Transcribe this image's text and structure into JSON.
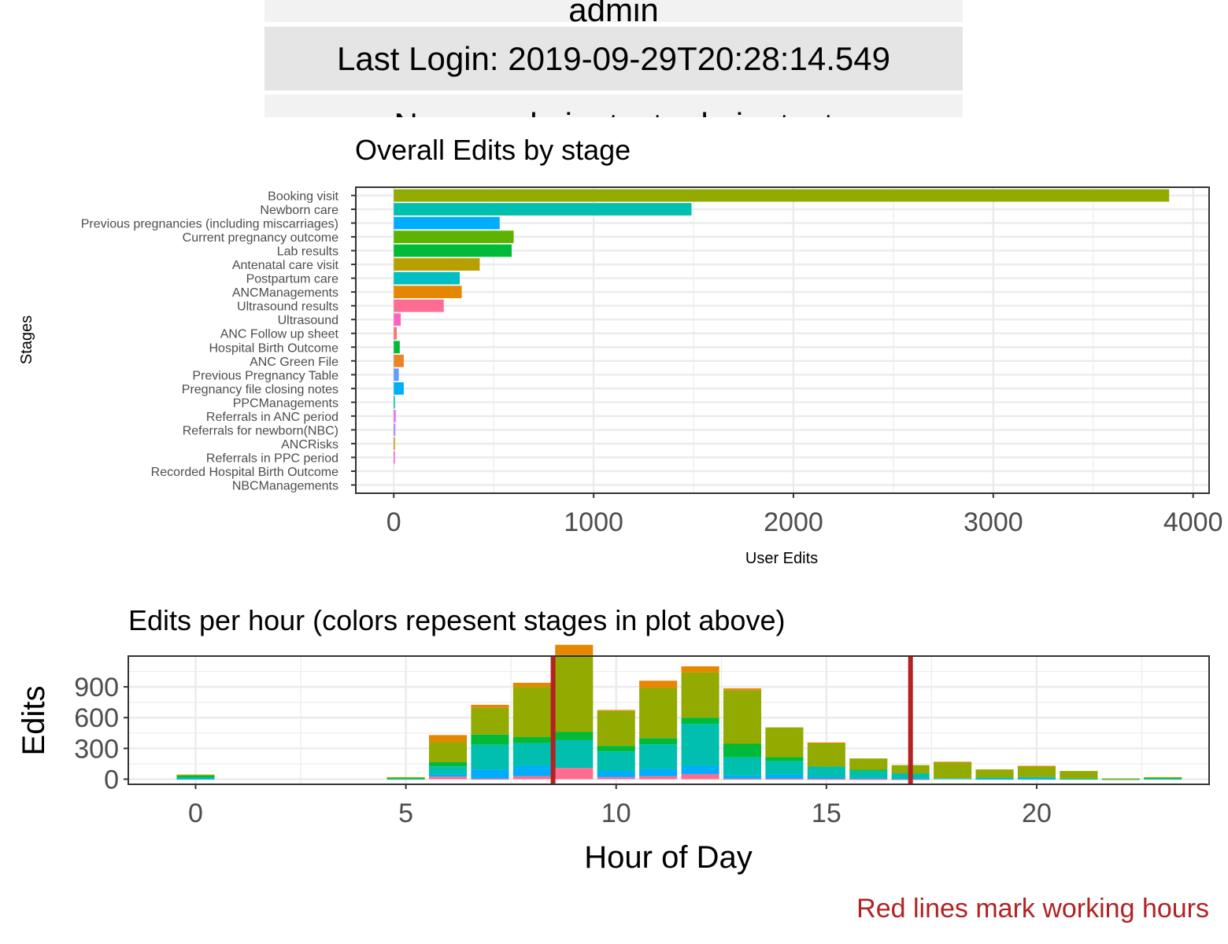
{
  "header": {
    "rows": [
      "admin",
      "Last Login: 2019-09-29T20:28:14.549",
      "Name: admin_test admin_test"
    ]
  },
  "colors": {
    "panel_border": "#333333",
    "grid_major": "#ebebeb",
    "working_hours_line": "#b22222",
    "stage_palette": [
      "#F8766D",
      "#E88526",
      "#D39200",
      "#B79F00",
      "#93AA00",
      "#5EB300",
      "#00BA38",
      "#00BF74",
      "#00C19F",
      "#00BFC4",
      "#00B9E3",
      "#00ADFA",
      "#619CFF",
      "#AE87FF",
      "#DB72FB",
      "#F564E3",
      "#FF61C3",
      "#FF6C91",
      "#E76BF3",
      "#00B0F6",
      "#7CAE00"
    ]
  },
  "chart_data": [
    {
      "type": "bar",
      "orientation": "horizontal",
      "title": "Overall Edits by stage",
      "xlabel": "User Edits",
      "ylabel": "Stages",
      "xlim": [
        -190,
        4080
      ],
      "xticks": [
        0,
        1000,
        2000,
        3000,
        4000
      ],
      "grid": true,
      "legend": "none",
      "categories": [
        "Booking visit",
        "Newborn care",
        "Previous pregnancies (including miscarriages)",
        "Current pregnancy outcome",
        "Lab results",
        "Antenatal care visit",
        "Postpartum care",
        "ANCManagements",
        "Ultrasound results",
        "Ultrasound",
        "ANC Follow up sheet",
        "Hospital Birth Outcome",
        "ANC Green File",
        "Previous Pregnancy Table",
        "Pregnancy file closing notes",
        "PPCManagements",
        "Referrals in ANC period",
        "Referrals for newborn(NBC)",
        "ANCRisks",
        "Referrals in PPC period",
        "Recorded Hospital Birth Outcome",
        "NBCManagements"
      ],
      "values": [
        3880,
        1490,
        530,
        600,
        590,
        430,
        330,
        340,
        250,
        35,
        15,
        30,
        50,
        25,
        50,
        5,
        10,
        8,
        4,
        6,
        0,
        0
      ],
      "bar_colors": [
        "#93AA00",
        "#00BFAE",
        "#00ADFA",
        "#5EB300",
        "#00BA38",
        "#B79F00",
        "#00BFC4",
        "#E58700",
        "#FF6C91",
        "#FF61C3",
        "#F8766D",
        "#00BA38",
        "#E88526",
        "#619CFF",
        "#00B0F6",
        "#00C19F",
        "#DB72FB",
        "#AE87FF",
        "#D39200",
        "#F564E3",
        "#00BF74",
        "#7CAE00"
      ]
    },
    {
      "type": "bar",
      "stacked": true,
      "title": "Edits per hour (colors repesent stages in plot above)",
      "xlabel": "Hour of Day",
      "ylabel": "Edits",
      "xlim": [
        -1.6,
        24.1
      ],
      "ylim": [
        -50,
        1200
      ],
      "xticks": [
        0,
        5,
        10,
        15,
        20
      ],
      "yticks": [
        0,
        300,
        600,
        900
      ],
      "grid": true,
      "legend": "none",
      "vlines": [
        8.5,
        17.0
      ],
      "caption": "Red lines mark working hours",
      "x": [
        0,
        1,
        2,
        3,
        4,
        5,
        6,
        7,
        8,
        9,
        10,
        11,
        12,
        13,
        14,
        15,
        16,
        17,
        18,
        19,
        20,
        21,
        22,
        23
      ],
      "series": [
        {
          "color": "#FF6C91",
          "values": [
            0,
            0,
            0,
            0,
            0,
            0,
            25,
            5,
            30,
            110,
            20,
            30,
            50,
            5,
            5,
            3,
            2,
            2,
            0,
            0,
            0,
            0,
            0,
            0
          ]
        },
        {
          "color": "#00ADFA",
          "values": [
            5,
            0,
            0,
            0,
            0,
            0,
            20,
            90,
            100,
            0,
            60,
            70,
            80,
            30,
            40,
            20,
            10,
            5,
            0,
            5,
            5,
            0,
            0,
            0
          ]
        },
        {
          "color": "#00BFAE",
          "values": [
            10,
            0,
            0,
            0,
            0,
            5,
            80,
            240,
            220,
            270,
            190,
            240,
            410,
            180,
            130,
            100,
            70,
            50,
            10,
            10,
            15,
            5,
            2,
            5
          ]
        },
        {
          "color": "#00BA38",
          "values": [
            20,
            0,
            0,
            0,
            0,
            5,
            40,
            100,
            60,
            80,
            55,
            60,
            60,
            130,
            40,
            0,
            10,
            0,
            0,
            0,
            0,
            0,
            0,
            10
          ]
        },
        {
          "color": "#93AA00",
          "values": [
            10,
            0,
            0,
            0,
            0,
            10,
            195,
            260,
            490,
            750,
            340,
            490,
            440,
            520,
            290,
            230,
            110,
            80,
            155,
            80,
            105,
            75,
            5,
            5
          ]
        },
        {
          "color": "#E58700",
          "values": [
            0,
            0,
            0,
            0,
            0,
            0,
            70,
            30,
            40,
            100,
            10,
            70,
            60,
            20,
            0,
            5,
            0,
            0,
            5,
            0,
            5,
            0,
            0,
            0
          ]
        }
      ]
    }
  ]
}
